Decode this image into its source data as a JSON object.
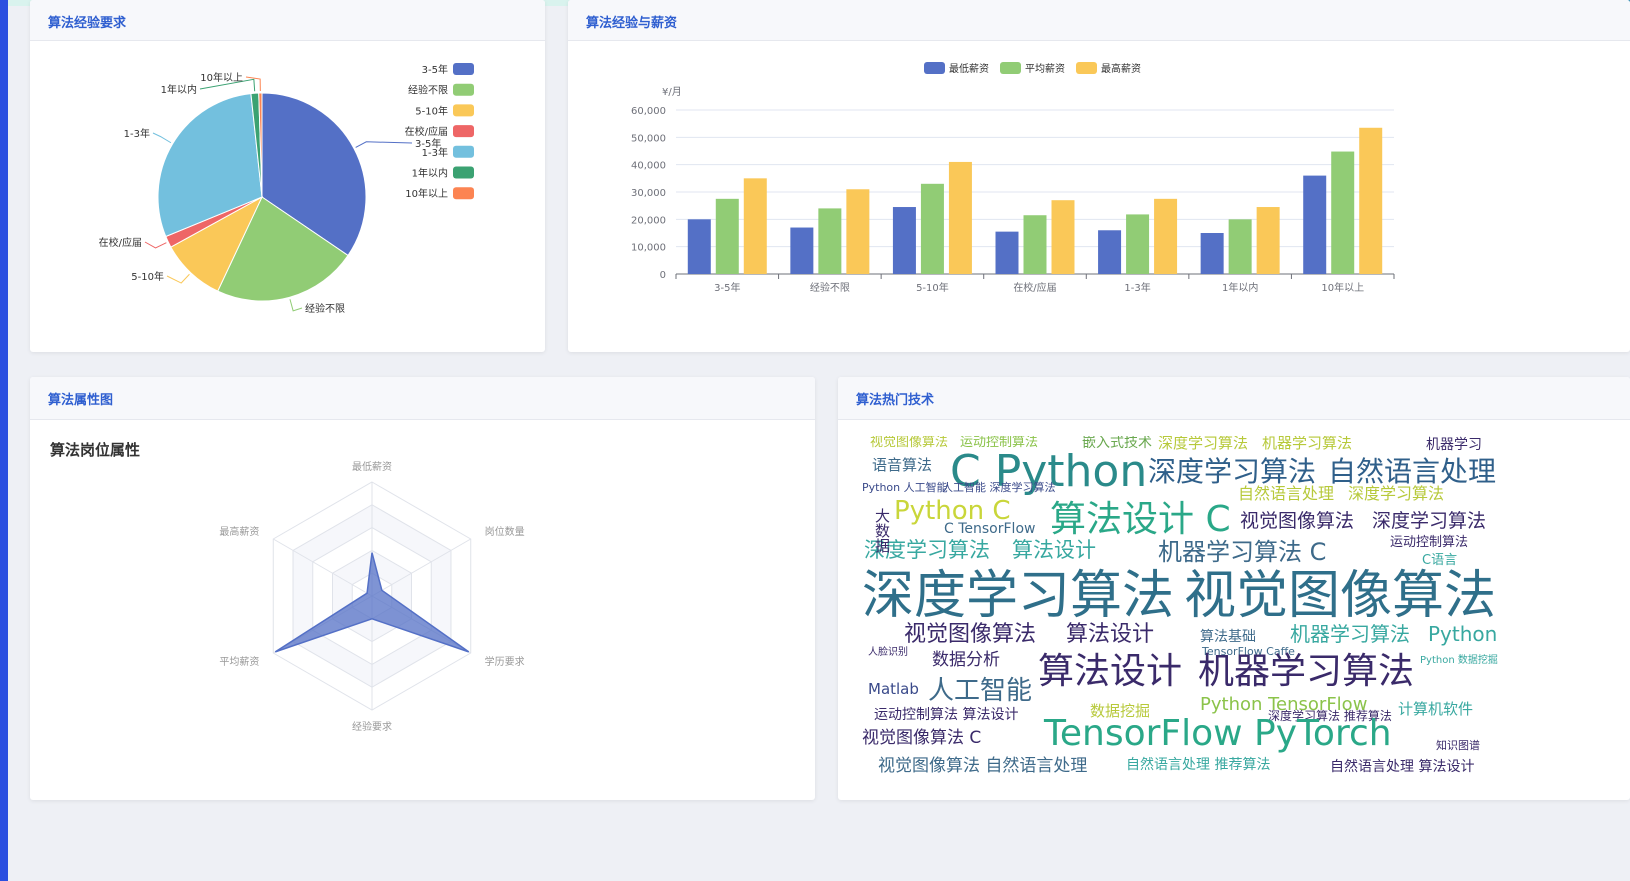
{
  "panels": {
    "pie_title": "算法经验要求",
    "bar_title": "算法经验与薪资",
    "radar_title": "算法属性图",
    "cloud_title": "算法热门技术"
  },
  "colors": {
    "blue": "#5470c6",
    "green": "#91cc75",
    "yellow": "#fac858",
    "red": "#ee6666",
    "cyan": "#73c0de",
    "teal": "#3ba272",
    "orange": "#fc8452"
  },
  "chart_data": [
    {
      "type": "pie",
      "labels": [
        "3-5年",
        "经验不限",
        "5-10年",
        "在校/应届",
        "1-3年",
        "1年以内",
        "10年以上"
      ],
      "values": [
        34.5,
        22.5,
        10.0,
        1.8,
        29.5,
        1.2,
        0.5
      ],
      "colors": [
        "#5470c6",
        "#91cc75",
        "#fac858",
        "#ee6666",
        "#73c0de",
        "#3ba272",
        "#fc8452"
      ],
      "legend": [
        "3-5年",
        "经验不限",
        "5-10年",
        "在校/应届",
        "1-3年",
        "1年以内",
        "10年以上"
      ],
      "legend_position": "top-right"
    },
    {
      "type": "bar",
      "categories": [
        "3-5年",
        "经验不限",
        "5-10年",
        "在校/应届",
        "1-3年",
        "1年以内",
        "10年以上"
      ],
      "series": [
        {
          "name": "最低薪资",
          "color": "#5470c6",
          "values": [
            20000,
            17000,
            24500,
            15500,
            16000,
            15000,
            36000
          ]
        },
        {
          "name": "平均薪资",
          "color": "#91cc75",
          "values": [
            27500,
            24000,
            33000,
            21500,
            21800,
            20000,
            44800
          ]
        },
        {
          "name": "最高薪资",
          "color": "#fac858",
          "values": [
            35000,
            31000,
            41000,
            27000,
            27500,
            24500,
            53500
          ]
        }
      ],
      "ylabel": "¥/月",
      "yticks": [
        "0",
        "10,000",
        "20,000",
        "30,000",
        "40,000",
        "50,000",
        "60,000"
      ],
      "ylim": [
        0,
        60000
      ],
      "legend_position": "top-center",
      "grid": true
    },
    {
      "type": "radar",
      "title": "算法岗位属性",
      "indicators": [
        "最低薪资",
        "岗位数量",
        "学历要求",
        "经验要求",
        "平均薪资",
        "最高薪资"
      ],
      "values": [
        0.38,
        0.1,
        0.98,
        0.2,
        0.98,
        0.05
      ],
      "color": "#5470c6"
    }
  ],
  "wordcloud": {
    "words": [
      {
        "t": "视觉图像算法",
        "s": 13,
        "c": "#b7c93a"
      },
      {
        "t": "运动控制算法",
        "s": 13,
        "c": "#8bc34a"
      },
      {
        "t": "嵌入式技术",
        "s": 14,
        "c": "#6aa84f"
      },
      {
        "t": "深度学习算法",
        "s": 15,
        "c": "#b7c93a"
      },
      {
        "t": "机器学习算法",
        "s": 15,
        "c": "#b7c93a"
      },
      {
        "t": "机器学习",
        "s": 14,
        "c": "#3a2a6a"
      },
      {
        "t": "语音算法",
        "s": 15,
        "c": "#3e6a8a"
      },
      {
        "t": "C Python",
        "s": 44,
        "c": "#2a8a8a"
      },
      {
        "t": "深度学习算法",
        "s": 28,
        "c": "#2f5f8a"
      },
      {
        "t": "自然语言处理",
        "s": 28,
        "c": "#2f5f8a"
      },
      {
        "t": "Python 人工智能",
        "s": 11,
        "c": "#3a4a8a"
      },
      {
        "t": "人工智能 深度学习算法",
        "s": 11,
        "c": "#3a4a8a"
      },
      {
        "t": "自然语言处理",
        "s": 16,
        "c": "#b7c93a"
      },
      {
        "t": "深度学习算法",
        "s": 16,
        "c": "#b7c93a"
      },
      {
        "t": "Python C",
        "s": 26,
        "c": "#c9d63a"
      },
      {
        "t": "C TensorFlow",
        "s": 14,
        "c": "#3e6a8a"
      },
      {
        "t": "算法设计 C",
        "s": 36,
        "c": "#2aa888"
      },
      {
        "t": "视觉图像算法",
        "s": 19,
        "c": "#3a2a6a"
      },
      {
        "t": "深度学习算法",
        "s": 19,
        "c": "#3a2a6a"
      },
      {
        "t": "运动控制算法",
        "s": 13,
        "c": "#3a2a6a"
      },
      {
        "t": "深度学习算法",
        "s": 21,
        "c": "#38a8a0"
      },
      {
        "t": "算法设计",
        "s": 21,
        "c": "#38a8a0"
      },
      {
        "t": "机器学习算法 C",
        "s": 24,
        "c": "#3e6a8a"
      },
      {
        "t": "C语言",
        "s": 13,
        "c": "#38a8a0"
      },
      {
        "t": "深度学习算法",
        "s": 52,
        "c": "#2f6f8a"
      },
      {
        "t": "视觉图像算法",
        "s": 52,
        "c": "#2f6f8a"
      },
      {
        "t": "视觉图像算法",
        "s": 22,
        "c": "#3a2a6a"
      },
      {
        "t": "算法设计",
        "s": 22,
        "c": "#3a2a6a"
      },
      {
        "t": "算法基础",
        "s": 14,
        "c": "#3e6a8a"
      },
      {
        "t": "机器学习算法",
        "s": 20,
        "c": "#38a8a0"
      },
      {
        "t": "Python",
        "s": 20,
        "c": "#38a8a0"
      },
      {
        "t": "TensorFlow Caffe",
        "s": 11,
        "c": "#3e6a8a"
      },
      {
        "t": "人脸识别",
        "s": 10,
        "c": "#3a2a6a"
      },
      {
        "t": "数据分析",
        "s": 17,
        "c": "#3a2a6a"
      },
      {
        "t": "算法设计",
        "s": 36,
        "c": "#3a2a6a"
      },
      {
        "t": "机器学习算法",
        "s": 36,
        "c": "#3a2a6a"
      },
      {
        "t": "Python 数据挖掘",
        "s": 10,
        "c": "#38a8a0"
      },
      {
        "t": "Matlab",
        "s": 15,
        "c": "#3a4a8a"
      },
      {
        "t": "人工智能",
        "s": 26,
        "c": "#3e6a8a"
      },
      {
        "t": "Python TensorFlow",
        "s": 18,
        "c": "#8bc34a"
      },
      {
        "t": "运动控制算法 算法设计",
        "s": 14,
        "c": "#3a2a6a"
      },
      {
        "t": "数据挖掘",
        "s": 15,
        "c": "#b7c93a"
      },
      {
        "t": "深度学习算法 推荐算法",
        "s": 12,
        "c": "#3a2a6a"
      },
      {
        "t": "计算机软件",
        "s": 15,
        "c": "#38a8a0"
      },
      {
        "t": "视觉图像算法 C",
        "s": 17,
        "c": "#3a2a6a"
      },
      {
        "t": "TensorFlow PyTorch",
        "s": 36,
        "c": "#2aa888"
      },
      {
        "t": "知识图谱",
        "s": 11,
        "c": "#3a2a6a"
      },
      {
        "t": "视觉图像算法 自然语言处理",
        "s": 17,
        "c": "#3e6a8a"
      },
      {
        "t": "自然语言处理 推荐算法",
        "s": 14,
        "c": "#38a8a0"
      },
      {
        "t": "自然语言处理 算法设计",
        "s": 14,
        "c": "#3a2a6a"
      },
      {
        "t": "大数据",
        "s": 15,
        "c": "#3a2a6a"
      }
    ]
  }
}
